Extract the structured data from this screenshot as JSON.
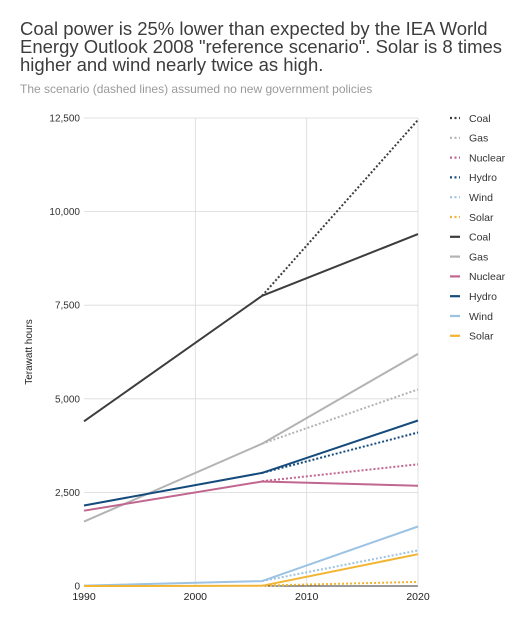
{
  "title": "Coal power is 25% lower than expected by the IEA World Energy Outlook 2008 \"reference scenario\". Solar is 8 times higher and wind nearly twice as high.",
  "subtitle": "The scenario (dashed lines) assumed no new government policies",
  "chart_data": {
    "type": "line",
    "title": "Coal power is 25% lower than expected by the IEA World Energy Outlook 2008 \"reference scenario\". Solar is 8 times higher and wind nearly twice as high.",
    "subtitle": "The scenario (dashed lines) assumed no new government policies",
    "xlabel": "",
    "ylabel": "Terawatt hours",
    "xlim": [
      1990,
      2020
    ],
    "ylim": [
      0,
      12500
    ],
    "xticks": [
      1990,
      2000,
      2010,
      2020
    ],
    "yticks": [
      0,
      2500,
      5000,
      7500,
      10000,
      12500
    ],
    "ytick_labels": [
      "0",
      "2,500",
      "5,000",
      "7,500",
      "10,000",
      "12,500"
    ],
    "grid": true,
    "legend_position": "right",
    "series": [
      {
        "name": "Coal",
        "kind": "scenario",
        "dashed": true,
        "color": "#3d3d3d",
        "x": [
          2006,
          2020
        ],
        "values": [
          7750,
          12450
        ]
      },
      {
        "name": "Gas",
        "kind": "scenario",
        "dashed": true,
        "color": "#b3b3b3",
        "x": [
          2006,
          2020
        ],
        "values": [
          3800,
          5250
        ]
      },
      {
        "name": "Nuclear",
        "kind": "scenario",
        "dashed": true,
        "color": "#c0668f",
        "x": [
          2006,
          2020
        ],
        "values": [
          2800,
          3250
        ]
      },
      {
        "name": "Hydro",
        "kind": "scenario",
        "dashed": true,
        "color": "#154b7c",
        "x": [
          2006,
          2020
        ],
        "values": [
          3020,
          4100
        ]
      },
      {
        "name": "Wind",
        "kind": "scenario",
        "dashed": true,
        "color": "#9cc3e3",
        "x": [
          2006,
          2020
        ],
        "values": [
          130,
          950
        ]
      },
      {
        "name": "Solar",
        "kind": "scenario",
        "dashed": true,
        "color": "#f2b433",
        "x": [
          2006,
          2020
        ],
        "values": [
          10,
          110
        ]
      },
      {
        "name": "Coal",
        "kind": "actual",
        "dashed": false,
        "color": "#3d3d3d",
        "x": [
          1990,
          2006,
          2020
        ],
        "values": [
          4400,
          7750,
          9400
        ]
      },
      {
        "name": "Gas",
        "kind": "actual",
        "dashed": false,
        "color": "#b3b3b3",
        "x": [
          1990,
          2006,
          2020
        ],
        "values": [
          1720,
          3800,
          6200
        ]
      },
      {
        "name": "Nuclear",
        "kind": "actual",
        "dashed": false,
        "color": "#c0668f",
        "x": [
          1990,
          2006,
          2020
        ],
        "values": [
          2010,
          2790,
          2680
        ]
      },
      {
        "name": "Hydro",
        "kind": "actual",
        "dashed": false,
        "color": "#154b7c",
        "x": [
          1990,
          2006,
          2020
        ],
        "values": [
          2150,
          3020,
          4420
        ]
      },
      {
        "name": "Wind",
        "kind": "actual",
        "dashed": false,
        "color": "#9cc3e3",
        "x": [
          1990,
          2006,
          2020
        ],
        "values": [
          10,
          130,
          1590
        ]
      },
      {
        "name": "Solar",
        "kind": "actual",
        "dashed": false,
        "color": "#f2b433",
        "x": [
          1990,
          2006,
          2020
        ],
        "values": [
          0,
          5,
          850
        ]
      }
    ]
  }
}
